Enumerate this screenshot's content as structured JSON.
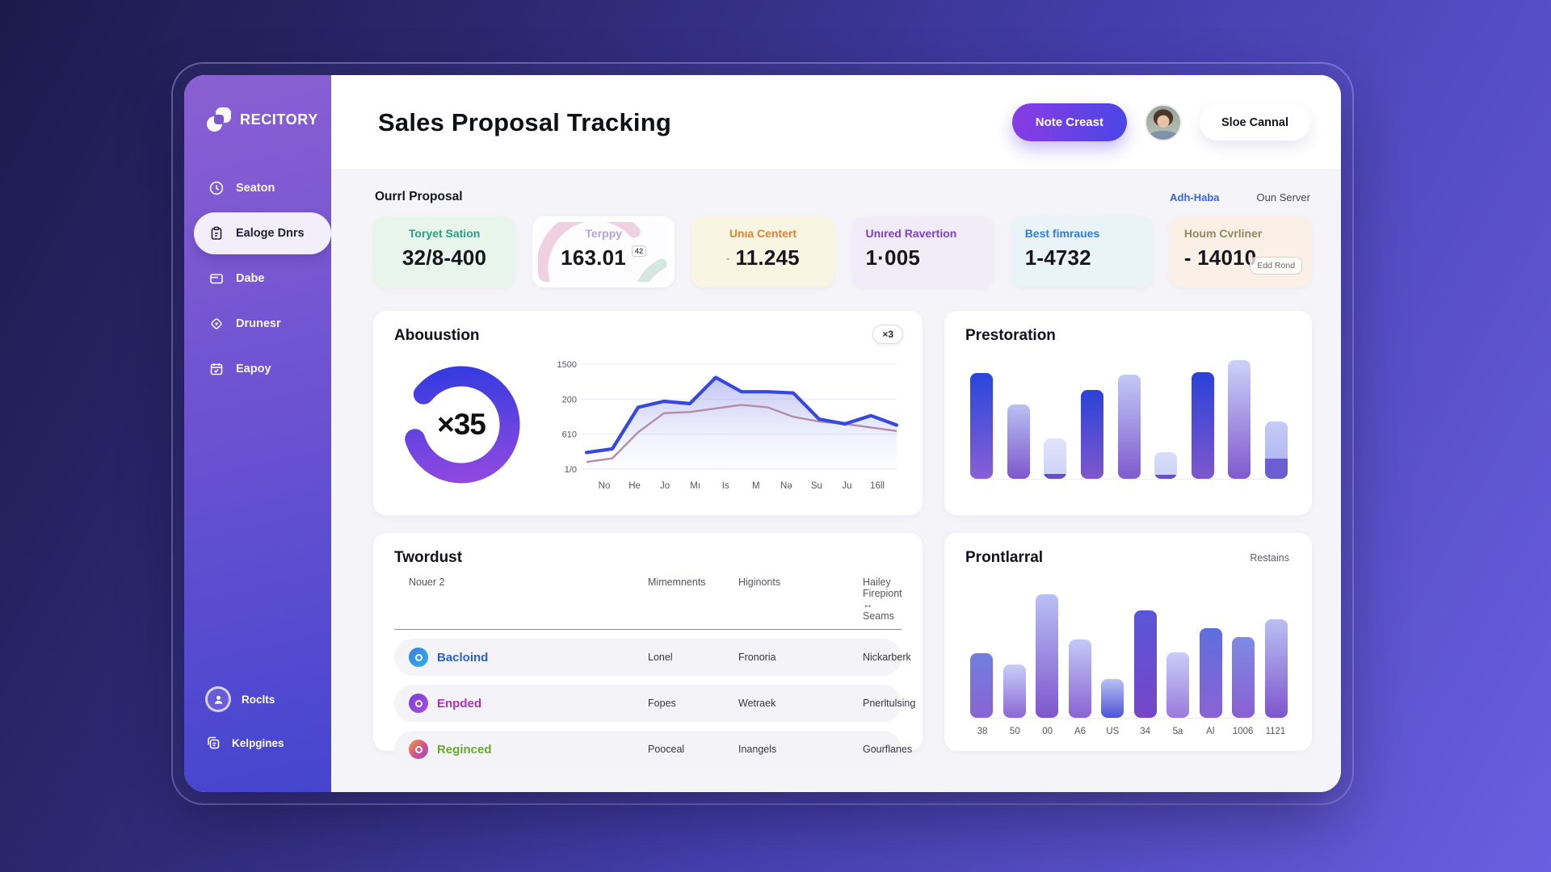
{
  "sidebar": {
    "logo": "RECITORY",
    "items": [
      {
        "label": "Seaton",
        "icon": "clock-icon"
      },
      {
        "label": "Ealoge Dnrs",
        "icon": "clipboard-icon",
        "active": true
      },
      {
        "label": "Dabe",
        "icon": "wallet-icon"
      },
      {
        "label": "Drunesr",
        "icon": "compass-icon"
      },
      {
        "label": "Eapoy",
        "icon": "calendar-icon"
      }
    ],
    "footer_items": [
      {
        "label": "Roclts",
        "icon": "profile-avatar-icon"
      },
      {
        "label": "Kelpgines",
        "icon": "copy-icon"
      }
    ]
  },
  "header": {
    "title": "Sales Proposal Tracking",
    "primary_button": "Note Creast",
    "secondary_button": "Sloe Cannal"
  },
  "overview": {
    "section_title": "Ourrl Proposal",
    "link_label": "Adh-Haba",
    "right_label": "Oun Server",
    "cards": [
      {
        "label": "Toryet Sation",
        "value": "32/8-400",
        "label_color": "#28a183",
        "bg": "#e7f5ec"
      },
      {
        "label": "Terppy",
        "value": "163.01",
        "sup": "42",
        "label_color": "#b5a3dc",
        "bg": "#ffffff"
      },
      {
        "label": "Unıa Centert",
        "value": "11.245",
        "prefix": "-",
        "label_color": "#e5812f",
        "bg": "#f9f5e3"
      },
      {
        "label": "Unıred Ravertion",
        "value": "1·005",
        "label_color": "#7c3fd4",
        "bg": "#f2ecf9"
      },
      {
        "label": "Best fimraues",
        "value": "1-4732",
        "label_color": "#2e7ee4",
        "bg": "#e9f3f8"
      },
      {
        "label": "Houm Cvrliner",
        "value": "- 14010",
        "badge": "Edd Rond",
        "label_color": "#8f8a62",
        "bg": "#faf0e5"
      }
    ]
  },
  "panels": {
    "abouustion_title": "Abouustion",
    "abouustion_badge": "×3",
    "prestoration_title": "Prestoration",
    "twordust_title": "Twordust",
    "prontlarral_title": "Prontlarral",
    "prontlarral_sub": "Restains"
  },
  "twordust": {
    "columns": [
      "Nouer 2",
      "Mimemnents",
      "Higinonts",
      "Hailey Firepiont ↔ Seams"
    ],
    "rows": [
      {
        "name": "Bacloind",
        "name_color": "#2b5fd0",
        "icon": "blue-circle-icon",
        "icon_bg": "linear-gradient(135deg,#3b7de4,#2bb2e8)",
        "cells": [
          "Lonel",
          "Fronoria",
          "Nickarberk"
        ]
      },
      {
        "name": "Enpded",
        "name_color": "#b02fb8",
        "icon": "purple-circle-icon",
        "icon_bg": "linear-gradient(135deg,#7a3fd8,#a44fe2)",
        "cells": [
          "Fopes",
          "Wetraek",
          "Pnerltulsing"
        ]
      },
      {
        "name": "Reginced",
        "name_color": "#6aa832",
        "icon": "gradient-circle-icon",
        "icon_bg": "linear-gradient(135deg,#e8a23f,#d84f8a 55%,#8a4fd8)",
        "cells": [
          "Pooceal",
          "Inangels",
          "Gourflanes"
        ]
      }
    ]
  },
  "chart_data": [
    {
      "name": "abouustion-donut",
      "type": "pie",
      "title": "Abouustion",
      "center_label": "×35",
      "value": 35,
      "ring_colors": [
        "#9a4ae0",
        "#2b3ae0"
      ],
      "gap_degrees": 58
    },
    {
      "name": "abouustion-line",
      "type": "area",
      "yticks": [
        "1500",
        "200",
        "610",
        "1/0"
      ],
      "categories": [
        "No",
        "He",
        "Jo",
        "Mı",
        "Is",
        "M",
        "Nə",
        "Su",
        "Ju",
        "16ll"
      ],
      "series": [
        {
          "name": "primary",
          "color": "#3548e0",
          "values": [
            0.14,
            0.17,
            0.52,
            0.57,
            0.55,
            0.77,
            0.65,
            0.65,
            0.64,
            0.42,
            0.38,
            0.45,
            0.37
          ]
        },
        {
          "name": "secondary",
          "color": "#b18ea6",
          "values": [
            0.06,
            0.09,
            0.31,
            0.47,
            0.48,
            0.51,
            0.54,
            0.52,
            0.44,
            0.4,
            0.38,
            0.35,
            0.32
          ]
        }
      ],
      "area_fill": [
        "rgba(116,122,232,0.45)",
        "rgba(200,205,245,0.04)"
      ],
      "grid": true,
      "legend": false
    },
    {
      "name": "prestoration-bars",
      "type": "bar",
      "title": "Prestoration",
      "values": [
        0.87,
        0.61,
        0.33,
        0.73,
        0.86,
        0.22,
        0.88,
        0.98,
        0.47
      ],
      "bars": [
        {
          "c": [
            "#2746dd",
            "#8a5fd6"
          ]
        },
        {
          "c": [
            "#b9c0f2",
            "#7e57cc"
          ]
        },
        {
          "c": [
            "#e0e4fb",
            "#ccd2f8"
          ],
          "band": [
            "#6550c6",
            0.12
          ]
        },
        {
          "c": [
            "#2b42d8",
            "#7e57cc"
          ]
        },
        {
          "c": [
            "#c3c9f5",
            "#7e5ace"
          ]
        },
        {
          "c": [
            "#d8ddfa",
            "#cdd3f8"
          ],
          "band": [
            "#6550c6",
            0.14
          ]
        },
        {
          "c": [
            "#2b42d8",
            "#7e57cc"
          ]
        },
        {
          "c": [
            "#ccd2f8",
            "#8059ce"
          ]
        },
        {
          "c": [
            "#c6ccf6",
            "#a8b0f0"
          ],
          "band": [
            "#6a5ed2",
            0.35
          ]
        }
      ]
    },
    {
      "name": "prontlarral-bars",
      "type": "bar",
      "title": "Prontlarral",
      "categories": [
        "38",
        "50",
        "00",
        "A6",
        "US",
        "34",
        "5a",
        "Al",
        "1006",
        "1121"
      ],
      "values": [
        0.51,
        0.42,
        0.98,
        0.62,
        0.31,
        0.85,
        0.52,
        0.71,
        0.64,
        0.78
      ],
      "bars": [
        {
          "c": [
            "#6f7fe0",
            "#8a63d4"
          ]
        },
        {
          "c": [
            "#c9cef6",
            "#8a68d6"
          ]
        },
        {
          "c": [
            "#b9c0f4",
            "#7e55cc"
          ]
        },
        {
          "c": [
            "#c3c9f5",
            "#8a63d4"
          ]
        },
        {
          "c": [
            "#b9c1f4",
            "#4d55d4"
          ]
        },
        {
          "c": [
            "#5a55d8",
            "#7747c8"
          ]
        },
        {
          "c": [
            "#c9cef6",
            "#9a7ade"
          ]
        },
        {
          "c": [
            "#5f6ede",
            "#8a63d4"
          ]
        },
        {
          "c": [
            "#7f8ae4",
            "#8a5fd2"
          ]
        },
        {
          "c": [
            "#b9c0f4",
            "#7e55cc"
          ]
        }
      ]
    }
  ]
}
